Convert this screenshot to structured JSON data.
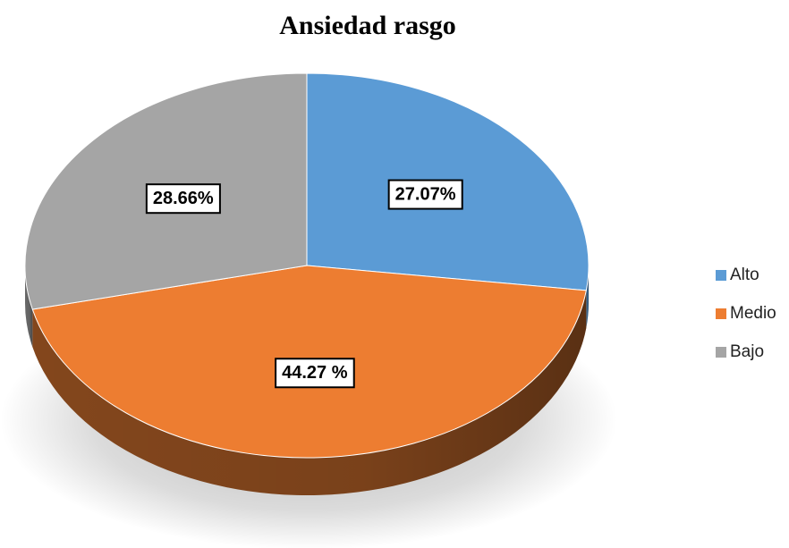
{
  "chart_data": {
    "type": "pie",
    "title": "Ansiedad rasgo",
    "labels": [
      "Alto",
      "Medio",
      "Bajo"
    ],
    "values": [
      27.07,
      44.27,
      28.66
    ],
    "data_labels": [
      "27.07%",
      "44.27 %",
      "28.66%"
    ],
    "colors": [
      "#5B9BD5",
      "#ED7D31",
      "#A5A5A5"
    ],
    "side_colors": [
      "#3F6E99",
      "#8A4A1E",
      "#707070"
    ],
    "legend_position": "right"
  }
}
